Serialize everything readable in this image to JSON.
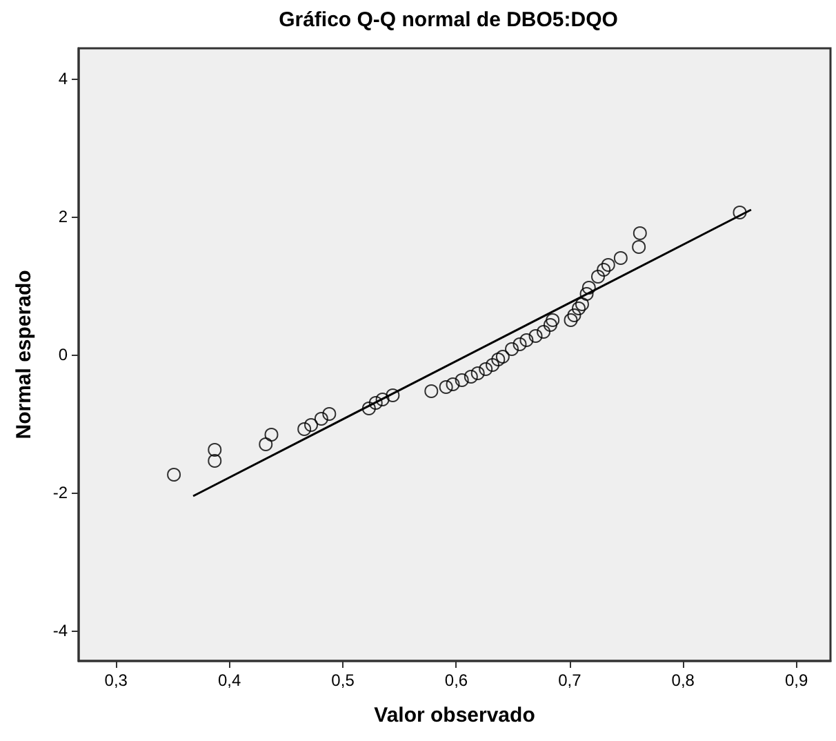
{
  "chart_data": {
    "type": "scatter",
    "title": "Gráfico Q-Q normal de DBO5:DQO",
    "xlabel": "Valor observado",
    "ylabel": "Normal esperado",
    "xlim": [
      0.267,
      0.93
    ],
    "ylim": [
      -4.44,
      4.44
    ],
    "xticks": [
      {
        "value": 0.3,
        "label": "0,3"
      },
      {
        "value": 0.4,
        "label": "0,4"
      },
      {
        "value": 0.5,
        "label": "0,5"
      },
      {
        "value": 0.6,
        "label": "0,6"
      },
      {
        "value": 0.7,
        "label": "0,7"
      },
      {
        "value": 0.8,
        "label": "0,8"
      },
      {
        "value": 0.9,
        "label": "0,9"
      }
    ],
    "yticks": [
      -4,
      -2,
      0,
      2,
      4
    ],
    "series": [
      {
        "color": "#000000",
        "marker": "circle",
        "x": [
          0.351,
          0.387,
          0.387,
          0.432,
          0.437,
          0.466,
          0.472,
          0.481,
          0.488,
          0.523,
          0.529,
          0.535,
          0.544,
          0.578,
          0.591,
          0.597,
          0.605,
          0.613,
          0.619,
          0.626,
          0.632,
          0.637,
          0.641,
          0.649,
          0.656,
          0.662,
          0.67,
          0.677,
          0.683,
          0.685,
          0.701,
          0.704,
          0.708,
          0.711,
          0.715,
          0.717,
          0.725,
          0.73,
          0.734,
          0.745,
          0.761,
          0.762,
          0.85
        ],
        "values": [
          -1.74,
          -1.38,
          -1.54,
          -1.3,
          -1.16,
          -1.08,
          -1.02,
          -0.93,
          -0.86,
          -0.78,
          -0.7,
          -0.65,
          -0.59,
          -0.53,
          -0.47,
          -0.43,
          -0.37,
          -0.32,
          -0.27,
          -0.21,
          -0.15,
          -0.07,
          -0.03,
          0.08,
          0.15,
          0.21,
          0.27,
          0.33,
          0.43,
          0.5,
          0.5,
          0.57,
          0.67,
          0.73,
          0.88,
          0.97,
          1.13,
          1.23,
          1.3,
          1.4,
          1.56,
          1.76,
          2.06
        ]
      },
      {
        "type": "line",
        "color": "#000000",
        "x": [
          0.368,
          0.86
        ],
        "values": [
          -2.05,
          2.1
        ]
      }
    ]
  }
}
